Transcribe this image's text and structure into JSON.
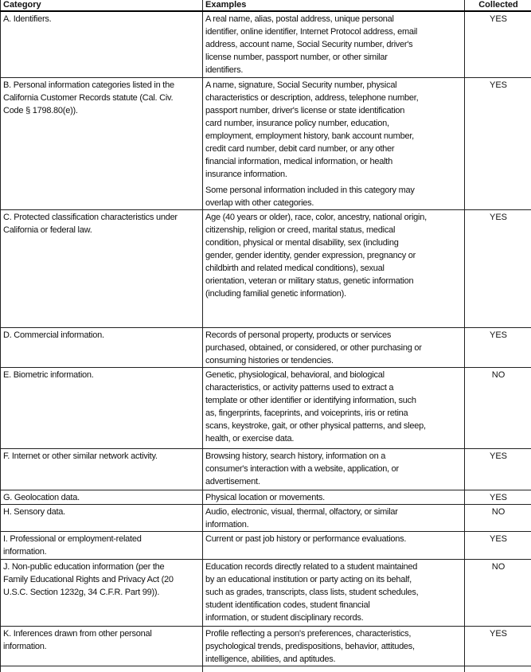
{
  "headers": {
    "category": "Category",
    "examples": "Examples",
    "collected": "Collected"
  },
  "rows": [
    {
      "category": [
        "A. Identifiers."
      ],
      "examples": [
        [
          "A real name, alias, postal address, unique personal",
          "identifier, online identifier, Internet Protocol address, email",
          "address, account name, Social Security number, driver's",
          "license number, passport number, or other similar",
          "identifiers."
        ]
      ],
      "collected": "YES"
    },
    {
      "category": [
        "B. Personal information categories listed in the",
        "California Customer Records statute (Cal. Civ.",
        "Code § 1798.80(e))."
      ],
      "examples": [
        [
          "A name, signature, Social Security number, physical",
          "characteristics or description, address, telephone number,",
          "passport number, driver's license or state identification",
          "card number, insurance policy number, education,",
          "employment, employment history, bank account number,",
          "credit card number, debit card number, or any other",
          "financial information, medical information, or health",
          "insurance information."
        ],
        [
          "Some personal information included in this category may",
          "overlap with other categories."
        ]
      ],
      "collected": "YES"
    },
    {
      "category": [
        "C. Protected classification characteristics under",
        "California or federal law."
      ],
      "examples": [
        [
          "Age (40 years or older), race, color, ancestry, national origin,",
          "citizenship, religion or creed, marital status, medical",
          "condition, physical or mental disability, sex (including",
          "gender, gender identity, gender expression, pregnancy or",
          "childbirth and related medical conditions), sexual",
          "orientation, veteran or military status, genetic information",
          "(including familial genetic information)."
        ]
      ],
      "collected": "YES"
    },
    {
      "category": [
        "D. Commercial information."
      ],
      "examples": [
        [
          "Records of personal property, products or services",
          "purchased, obtained, or considered, or other purchasing or",
          "consuming histories or tendencies."
        ]
      ],
      "collected": "YES"
    },
    {
      "category": [
        "E. Biometric information."
      ],
      "examples": [
        [
          "Genetic, physiological, behavioral, and biological",
          "characteristics, or activity patterns used to extract a",
          "template or other identifier or identifying information, such",
          "as, fingerprints, faceprints, and voiceprints, iris or retina",
          "scans, keystroke, gait, or other physical patterns, and sleep,",
          "health, or exercise data."
        ]
      ],
      "collected": "NO"
    },
    {
      "category": [
        "F. Internet or other similar network activity."
      ],
      "examples": [
        [
          "Browsing history, search history, information on a",
          "consumer's interaction with a website, application, or",
          "advertisement."
        ]
      ],
      "collected": "YES"
    },
    {
      "category": [
        "G. Geolocation data."
      ],
      "examples": [
        [
          "Physical location or movements."
        ]
      ],
      "collected": "YES"
    },
    {
      "category": [
        "H. Sensory data."
      ],
      "examples": [
        [
          "Audio, electronic, visual, thermal, olfactory, or similar",
          "information."
        ]
      ],
      "collected": "NO"
    },
    {
      "category": [
        "I. Professional or employment-related",
        "information."
      ],
      "examples": [
        [
          "Current or past job history or performance evaluations."
        ]
      ],
      "collected": "YES"
    },
    {
      "category": [
        "J. Non-public education information (per the",
        "Family Educational Rights and Privacy Act (20",
        "U.S.C. Section 1232g, 34 C.F.R. Part 99))."
      ],
      "examples": [
        [
          "Education records directly related to a student maintained",
          "by an educational institution or party acting on its behalf,",
          "such as grades, transcripts, class lists, student schedules,",
          "student identification codes, student financial",
          "information, or student disciplinary records."
        ]
      ],
      "collected": "NO"
    },
    {
      "category": [
        "K. Inferences drawn from other personal",
        "information."
      ],
      "examples": [
        [
          "Profile reflecting a person's preferences, characteristics,",
          "psychological trends, predispositions, behavior, attitudes,",
          "intelligence, abilities, and aptitudes."
        ]
      ],
      "collected": "YES"
    }
  ]
}
